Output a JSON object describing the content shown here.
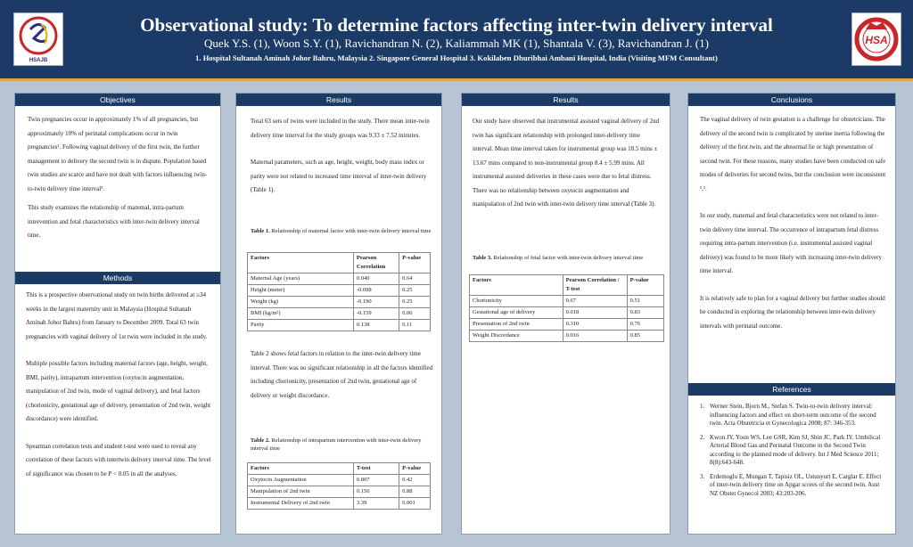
{
  "header": {
    "title": "Observational study: To determine factors affecting inter-twin delivery interval",
    "authors": "Quek Y.S. (1), Woon S.Y. (1), Ravichandran N. (2), Kaliammah MK (1), Shantala V. (3), Ravichandran J. (1)",
    "affiliations": "1. Hospital Sultanah Aminah Johor Bahru, Malaysia   2. Singapore General Hospital   3. Kokilaben Dhuribhai Ambani Hospital, India (Visiting MFM Consultant)",
    "logo_left_text": "HSAJB",
    "logo_right_text": "HSA"
  },
  "objectives": {
    "heading": "Objectives",
    "p1": "Twin pregnancies occur in approximately 1% of all pregnancies, but approximately 10% of perinatal complications occur in twin pregnancies¹. Following vaginal delivery of the first twin, the further management to delivery the second twin is in dispute. Population based twin studies are scarce and have not dealt with factors influencing twin-to-twin delivery time interval².",
    "p2": "This study examines the relationship of maternal, intra-partum intervention and fetal characteristics with inter-twin delivery interval time."
  },
  "methods": {
    "heading": "Methods",
    "p1": "This is a prospective observational study on twin births delivered at ≥34 weeks in the largest maternity unit in Malaysia (Hospital Sultanah Aminah Johor Bahru) from January to December 2009.  Total 63 twin pregnancies with vaginal delivery of 1st twin were included in the study.",
    "p2": "Multiple possible factors including maternal factors (age, height, weight, BMI, parity), intrapartum intervention (oxytocin augmentation, manipulation of 2nd twin, mode of vaginal delivery), and fetal factors (chorionicity, gestational age of delivery, presentation of 2nd twin, weight discordance) were identified.",
    "p3": "Spearman correlation tests and student t-test were used to reveal any correlation of these factors with intertwin delivery interval time. The level of significance was chosen to be P < 0.05 in all the analyses."
  },
  "results1": {
    "heading": "Results",
    "p1": "Total 63 sets of twins were included in the study.  There mean inter-twin delivery time interval for the study groups was 9.33 ± 7.52 minutes.",
    "p2": "Maternal parameters, such as age, height, weight, body mass index or parity were not related to increased time interval of inter-twin delivery (Table 1).",
    "table1_caption_label": "Table 1.",
    "table1_caption": " Relationship of maternal factor with inter-twin delivery interval time",
    "table1_headers": [
      "Factors",
      "Pearson Correlation",
      "P-value"
    ],
    "table1_rows": [
      [
        "Maternal Age (years)",
        "0.040",
        "0.64"
      ],
      [
        "Height (meter)",
        "-0.098",
        "0.25"
      ],
      [
        "Weight (kg)",
        "-0.190",
        "0.25"
      ],
      [
        "BMI (kg/m²)",
        "-0.159",
        "0.06"
      ],
      [
        "Parity",
        "0.138",
        "0.11"
      ]
    ],
    "p3": "Table 2 shows fetal factors in relation to the inter-twin delivery time interval. There was no significant relationship in all the factors identified including chorionicity, presentation of 2nd twin, gestational age of delivery or weight discordance.",
    "table2_caption_label": "Table 2.",
    "table2_caption": " Relationship of intrapartum intervention with inter-twin delivery interval time",
    "table2_headers": [
      "Factors",
      "T-test",
      "P-value"
    ],
    "table2_rows": [
      [
        "Oxytocin Augmentation",
        "0.807",
        "0.42"
      ],
      [
        "Manipulation of 2nd twin",
        "0.156",
        "0.88"
      ],
      [
        "Instrumental Delivery of 2nd twin",
        "3.39",
        "0.001"
      ]
    ]
  },
  "results2": {
    "heading": "Results",
    "p1": "Our study have observed that instrumental assisted vaginal delivery of 2nd twin has significant relationship with prolonged inter-delivery time interval. Mean time interval taken for instrumental group was 18.5 mins ± 13.67 mins compared to non-instrumental group 8.4 ± 5.99 mins. All instrumental assisted deliveries in these cases were due to fetal distress. There was no relationship between oxytocin augmentation and manipulation of 2nd twin with inter-twin delivery time interval (Table 3).",
    "table3_caption_label": "Table 3.",
    "table3_caption": " Relationship of fetal factor with inter-twin delivery interval time",
    "table3_headers": [
      "Factors",
      "Pearson Correlation / T-test",
      "P-value"
    ],
    "table3_rows": [
      [
        "Chorionicity",
        "0.67",
        "0.51"
      ],
      [
        "Gestational age of delivery",
        "0.018",
        "0.83"
      ],
      [
        "Presentation of 2nd twin",
        "0.310",
        "0.76"
      ],
      [
        "Weight Discordance",
        "0.016",
        "0.85"
      ]
    ]
  },
  "conclusions": {
    "heading": "Conclusions",
    "p1": "The vaginal delivery of twin gestation is a challenge for obstetricians. The delivery of the second twin is complicated by uterine inertia following the delivery of the first twin, and the abnormal lie or high presentation of second twin. For these reasons, many studies have been conducted on safe modes of deliveries for second twins, but the conclusion were inconsistent ¹,².",
    "p2": "In our study, maternal and fetal characteristics were not related to inter-twin delivery time interval. The occurrence of intrapartum fetal distress requiring intra-partum intervention (i.e. instrumental assisted vaginal delivery) was found to be more likely with increasing inter-twin delivery time interval.",
    "p3": "It is relatively safe to plan for a vaginal delivery but further studies should be conducted in exploring the relationship between inter-twin delivery intervals with perinatal outcome."
  },
  "references": {
    "heading": "References",
    "items": [
      "Werner Stein, Bjorn M., Stefan S. Twin-to-twin delivery interval: influencing factors and effect on short-term outcome of the second twin. Acta Obstetricia et Gynecologica 2008; 87: 346-353.",
      "Kwon JY, Yoon WS, Lee GSR, Kim SJ, Shin JC, Park IY. Umbilical Arterial Blood Gas and Perinatal Outcome in the Second Twin according to the planned mode of delivery. Int J Med Science 2011; 8(8):643-648.",
      "Erdemoglu E, Mungan T, Tapisiz OL, Ustunyurt E, Carglar E. Effect of inter-twin delivery time on Apgar scores of the second twin. Aust NZ Obstet Gynecol 2003; 43:203-206."
    ]
  },
  "colors": {
    "header_bg": "#1c3a66",
    "accent_stripe": "#d9a74a",
    "page_bg": "#b6c4d3"
  }
}
